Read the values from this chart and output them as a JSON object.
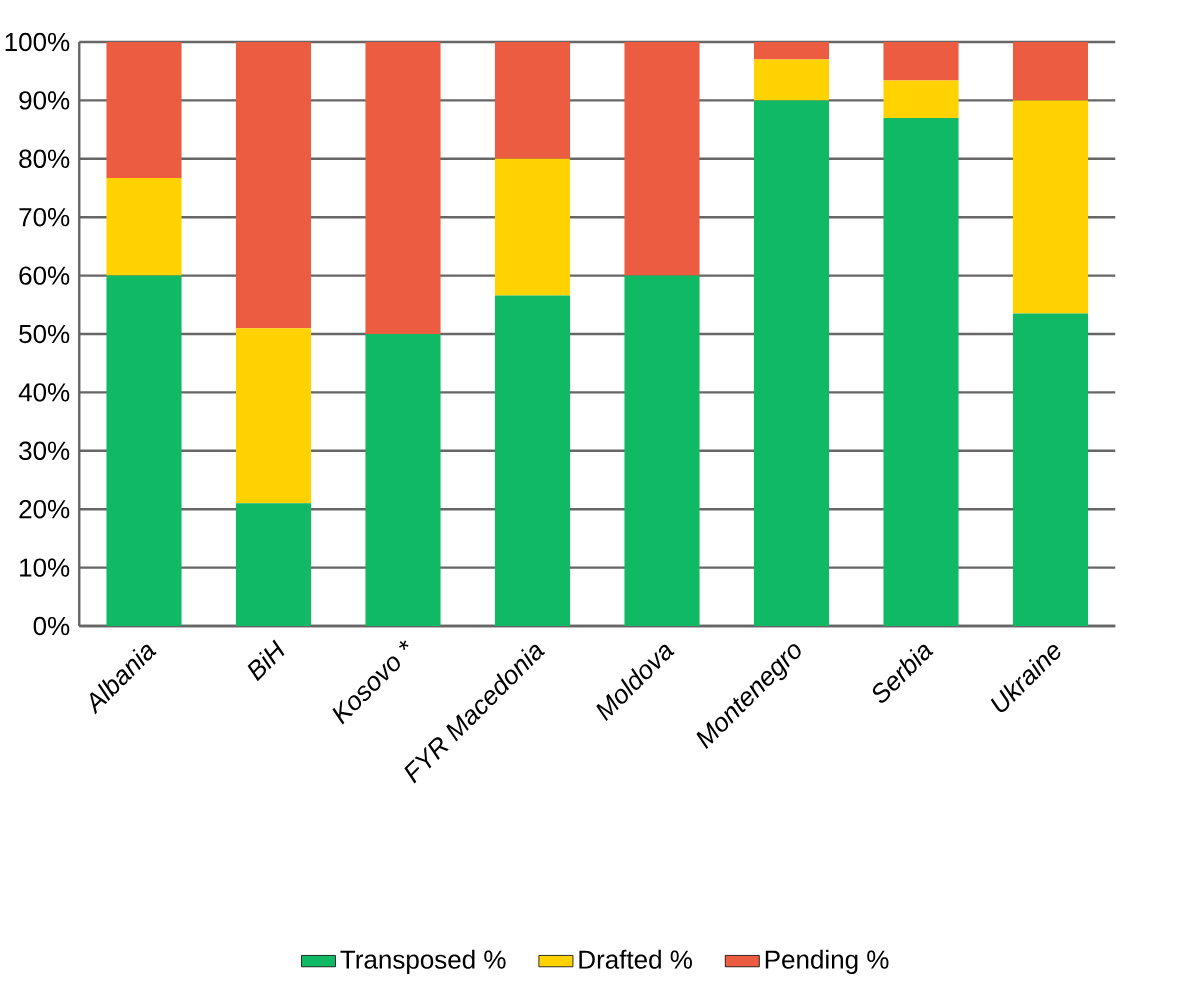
{
  "chart_data": {
    "type": "bar",
    "stacked": true,
    "categories": [
      "Albania",
      "BiH",
      "Kosovo *",
      "FYR Macedonia",
      "Moldova",
      "Montenegro",
      "Serbia",
      "Ukraine"
    ],
    "series": [
      {
        "name": "Transposed %",
        "color": "#10b964",
        "values": [
          60,
          21,
          50,
          56.6,
          60,
          90,
          87,
          53.5
        ]
      },
      {
        "name": "Drafted %",
        "color": "#ffd200",
        "values": [
          16.7,
          30,
          0,
          23.4,
          0,
          7,
          6.4,
          36.5
        ]
      },
      {
        "name": "Pending %",
        "color": "#eb5c40",
        "values": [
          23.3,
          49,
          50,
          20,
          40,
          3,
          6.6,
          10
        ]
      }
    ],
    "ylim": [
      0,
      100
    ],
    "yticks": [
      {
        "value": 0,
        "label": "0%"
      },
      {
        "value": 10,
        "label": "10%"
      },
      {
        "value": 20,
        "label": "20%"
      },
      {
        "value": 30,
        "label": "30%"
      },
      {
        "value": 40,
        "label": "40%"
      },
      {
        "value": 50,
        "label": "50%"
      },
      {
        "value": 60,
        "label": "60%"
      },
      {
        "value": 70,
        "label": "70%"
      },
      {
        "value": 80,
        "label": "80%"
      },
      {
        "value": 90,
        "label": "90%"
      },
      {
        "value": 100,
        "label": "100%"
      }
    ],
    "grid": "y",
    "legend": "bottom"
  }
}
